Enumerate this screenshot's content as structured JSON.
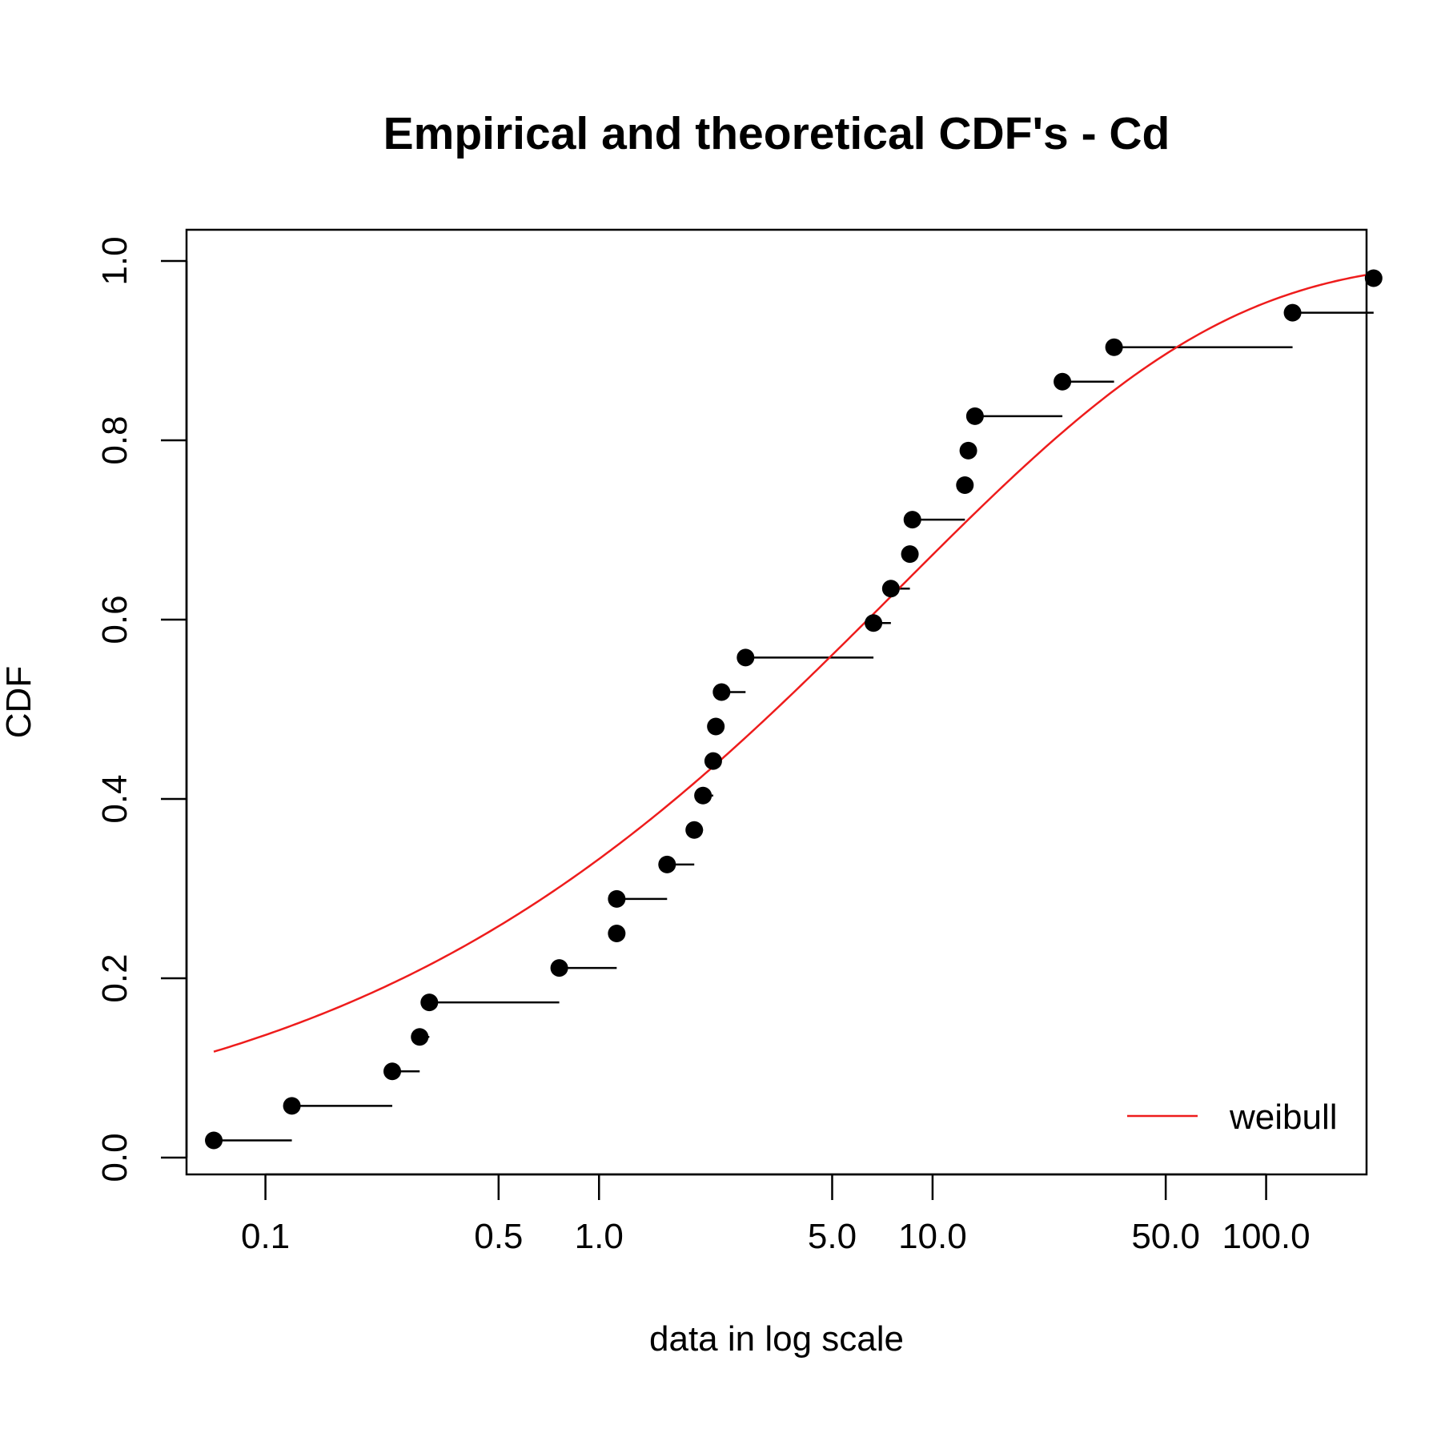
{
  "chart_data": {
    "type": "scatter",
    "title": "Empirical and theoretical CDF's - Cd",
    "xlabel": "data in log scale",
    "ylabel": "CDF",
    "x_scale": "log",
    "xlim": [
      0.058,
      200
    ],
    "ylim": [
      0,
      1
    ],
    "x_ticks": [
      0.1,
      0.5,
      1.0,
      5.0,
      10.0,
      50.0,
      100.0
    ],
    "x_tick_labels": [
      "0.1",
      "0.5",
      "1.0",
      "5.0",
      "10.0",
      "50.0",
      "100.0"
    ],
    "y_ticks": [
      0,
      0.2,
      0.4,
      0.6,
      0.8,
      1.0
    ],
    "y_tick_labels": [
      "0.0",
      "0.2",
      "0.4",
      "0.6",
      "0.8",
      "1.0"
    ],
    "grid": false,
    "legend_position": "bottom-right",
    "series": [
      {
        "kind": "ecdf-points",
        "color": "#000000",
        "points": [
          {
            "x": 0.07,
            "y": 0.0192
          },
          {
            "x": 0.12,
            "y": 0.0577
          },
          {
            "x": 0.24,
            "y": 0.0962
          },
          {
            "x": 0.29,
            "y": 0.1346
          },
          {
            "x": 0.31,
            "y": 0.1731
          },
          {
            "x": 0.76,
            "y": 0.2115
          },
          {
            "x": 1.13,
            "y": 0.25
          },
          {
            "x": 1.13,
            "y": 0.2885
          },
          {
            "x": 1.6,
            "y": 0.3269
          },
          {
            "x": 1.93,
            "y": 0.3654
          },
          {
            "x": 2.05,
            "y": 0.4038
          },
          {
            "x": 2.2,
            "y": 0.4423
          },
          {
            "x": 2.24,
            "y": 0.4808
          },
          {
            "x": 2.33,
            "y": 0.5192
          },
          {
            "x": 2.75,
            "y": 0.5577
          },
          {
            "x": 6.65,
            "y": 0.5962
          },
          {
            "x": 7.5,
            "y": 0.6346
          },
          {
            "x": 8.55,
            "y": 0.6731
          },
          {
            "x": 8.7,
            "y": 0.7115
          },
          {
            "x": 12.5,
            "y": 0.75
          },
          {
            "x": 12.8,
            "y": 0.7885
          },
          {
            "x": 13.4,
            "y": 0.8269
          },
          {
            "x": 24.5,
            "y": 0.8654
          },
          {
            "x": 35,
            "y": 0.9038
          },
          {
            "x": 120,
            "y": 0.9423
          },
          {
            "x": 210,
            "y": 0.9808
          }
        ]
      },
      {
        "kind": "line",
        "name": "weibull",
        "color": "#ee1c1c",
        "distribution": "weibull",
        "shape": 0.44,
        "scale": 7.8,
        "x_range": [
          0.07,
          210
        ]
      }
    ]
  }
}
